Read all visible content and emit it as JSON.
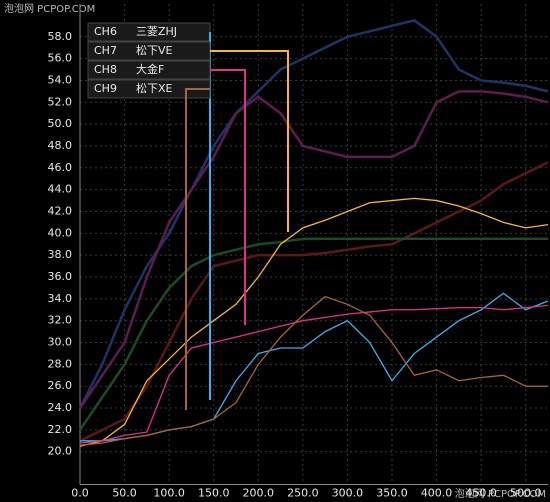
{
  "watermark_top": "泡泡网 PCPOP.COM",
  "watermark_bottom": "泡泡网 PCPOP.COM",
  "chart_data": {
    "type": "line",
    "x": [
      0,
      25,
      50,
      75,
      100,
      125,
      150,
      175,
      200,
      225,
      250,
      275,
      300,
      325,
      350,
      375,
      400,
      425,
      450,
      475,
      500,
      525
    ],
    "xlim": [
      0,
      525
    ],
    "ylim": [
      17,
      61
    ],
    "grid": true,
    "xticks": [
      {
        "value": 0,
        "label": "0.0"
      },
      {
        "value": 50,
        "label": "50.0"
      },
      {
        "value": 100,
        "label": "100.0"
      },
      {
        "value": 150,
        "label": "150.0"
      },
      {
        "value": 200,
        "label": "200.0"
      },
      {
        "value": 250,
        "label": "250.0"
      },
      {
        "value": 300,
        "label": "300.0"
      },
      {
        "value": 350,
        "label": "350.0"
      },
      {
        "value": 400,
        "label": "400.0"
      },
      {
        "value": 450,
        "label": "450.0"
      },
      {
        "value": 500,
        "label": "500.0"
      }
    ],
    "yticks": [
      {
        "value": 20,
        "label": "20.0"
      },
      {
        "value": 22,
        "label": "22.0"
      },
      {
        "value": 24,
        "label": "24.0"
      },
      {
        "value": 26,
        "label": "26.0"
      },
      {
        "value": 28,
        "label": "28.0"
      },
      {
        "value": 30,
        "label": "30.0"
      },
      {
        "value": 32,
        "label": "32.0"
      },
      {
        "value": 34,
        "label": "34.0"
      },
      {
        "value": 36,
        "label": "36.0"
      },
      {
        "value": 38,
        "label": "38.0"
      },
      {
        "value": 40,
        "label": "40.0"
      },
      {
        "value": 42,
        "label": "42.0"
      },
      {
        "value": 44,
        "label": "44.0"
      },
      {
        "value": 46,
        "label": "46.0"
      },
      {
        "value": 48,
        "label": "48.0"
      },
      {
        "value": 50,
        "label": "50.0"
      },
      {
        "value": 52,
        "label": "52.0"
      },
      {
        "value": 54,
        "label": "54.0"
      },
      {
        "value": 56,
        "label": "56.0"
      },
      {
        "value": 58,
        "label": "58.0"
      }
    ],
    "series": [
      {
        "color": "#1d3566",
        "values": [
          24,
          28,
          33,
          37,
          40,
          44,
          48,
          51,
          53,
          55,
          56,
          57,
          58,
          58.5,
          59,
          59.5,
          58,
          55,
          54,
          53.8,
          53.5,
          53
        ]
      },
      {
        "color": "#5e1c50",
        "values": [
          24,
          27,
          30,
          36,
          41,
          44,
          47,
          51,
          52.5,
          51,
          48,
          47.5,
          47,
          47,
          47,
          48,
          52,
          53,
          53,
          52.8,
          52.5,
          52
        ]
      },
      {
        "color": "#5c1818",
        "values": [
          21,
          22,
          23,
          26,
          30,
          34,
          37,
          37.5,
          38,
          38,
          38,
          38.2,
          38.5,
          38.8,
          39,
          40,
          41,
          42,
          43,
          44.5,
          45.5,
          46.5
        ]
      },
      {
        "color": "#1c4a26",
        "values": [
          22,
          25,
          28,
          32,
          35,
          37,
          38,
          38.5,
          39,
          39.2,
          39.5,
          39.5,
          39.5,
          39.5,
          39.5,
          39.5,
          39.5,
          39.5,
          39.5,
          39.5,
          39.5,
          39.5
        ]
      },
      {
        "channel": "CH6",
        "name": "三菱ZHJ",
        "color": "#3ab0f0",
        "values": [
          21,
          21,
          21.2,
          21.5,
          22,
          22.3,
          23,
          26.5,
          29,
          29.5,
          29.5,
          31,
          32,
          30,
          26.5,
          29,
          30.5,
          32,
          33,
          34.5,
          33,
          33.8
        ]
      },
      {
        "channel": "CH7",
        "name": "松下VE",
        "color": "#f5b830",
        "values": [
          20.5,
          21,
          22.5,
          26.5,
          28.5,
          30.5,
          32,
          33.5,
          36,
          39,
          40.5,
          41.2,
          42,
          42.8,
          43,
          43.2,
          43,
          42.5,
          41.8,
          41,
          40.5,
          40.8
        ]
      },
      {
        "channel": "CH8",
        "name": "大金F",
        "color": "#e0308a",
        "values": [
          20.8,
          21,
          21.5,
          21.8,
          27,
          29.5,
          30,
          30.5,
          31,
          31.5,
          32,
          32.3,
          32.6,
          32.8,
          33,
          33,
          33.1,
          33.2,
          33.2,
          33,
          33.2,
          33.4
        ]
      },
      {
        "channel": "CH9",
        "name": "松下XE",
        "color": "#a8643c",
        "values": [
          20.6,
          20.8,
          21.2,
          21.5,
          22,
          22.3,
          23,
          24.5,
          28,
          30.5,
          32.5,
          34.2,
          33.5,
          32.5,
          30,
          27,
          27.5,
          26.5,
          26.8,
          27,
          26,
          26
        ]
      }
    ]
  }
}
